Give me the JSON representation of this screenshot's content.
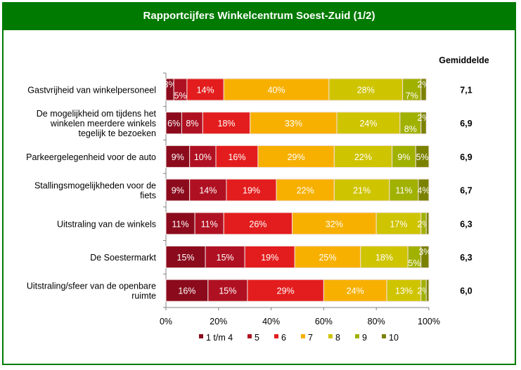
{
  "title": "Rapportcijfers Winkelcentrum Soest-Zuid (1/2)",
  "chart_data": {
    "type": "bar",
    "orientation": "horizontal",
    "stacked": "percent",
    "title": "Rapportcijfers Winkelcentrum Soest-Zuid (1/2)",
    "average_header": "Gemiddelde",
    "categories": [
      [
        "Gastvrijheid van winkelpersoneel"
      ],
      [
        "De mogelijkheid om tijdens het",
        "winkelen meerdere winkels",
        "tegelijk te bezoeken"
      ],
      [
        "Parkeergelegenheid voor de auto"
      ],
      [
        "Stallingsmogelijkheden voor de",
        "fiets"
      ],
      [
        "Uitstraling van de winkels"
      ],
      [
        "De Soestermarkt"
      ],
      [
        "Uitstraling/sfeer van de openbare",
        "ruimte"
      ]
    ],
    "averages": [
      "7,1",
      "6,9",
      "6,9",
      "6,7",
      "6,3",
      "6,3",
      "6,0"
    ],
    "series": [
      {
        "name": "1 t/m 4",
        "color": "#8b0b1c",
        "values": [
          3,
          6,
          9,
          9,
          11,
          15,
          16
        ]
      },
      {
        "name": "5",
        "color": "#b01122",
        "values": [
          5,
          8,
          10,
          14,
          11,
          15,
          15
        ]
      },
      {
        "name": "6",
        "color": "#e31d1d",
        "values": [
          14,
          18,
          16,
          19,
          26,
          19,
          29
        ]
      },
      {
        "name": "7",
        "color": "#f7b000",
        "values": [
          40,
          33,
          29,
          22,
          32,
          25,
          24
        ]
      },
      {
        "name": "8",
        "color": "#cfc400",
        "values": [
          28,
          24,
          22,
          21,
          17,
          18,
          13
        ]
      },
      {
        "name": "9",
        "color": "#a1b100",
        "values": [
          7,
          8,
          9,
          11,
          2,
          5,
          2
        ]
      },
      {
        "name": "10",
        "color": "#7b8200",
        "values": [
          2,
          2,
          5,
          4,
          1,
          3,
          1
        ]
      }
    ],
    "data_labels": [
      [
        "3%",
        "6%",
        "9%",
        "9%",
        "11%",
        "15%",
        "16%"
      ],
      [
        "5%",
        "8%",
        "10%",
        "14%",
        "11%",
        "15%",
        "15%"
      ],
      [
        "14%",
        "18%",
        "16%",
        "19%",
        "26%",
        "19%",
        "29%"
      ],
      [
        "40%",
        "33%",
        "29%",
        "22%",
        "32%",
        "25%",
        "24%"
      ],
      [
        "28%",
        "24%",
        "22%",
        "21%",
        "17%",
        "18%",
        "13%"
      ],
      [
        "7%",
        "8%",
        "9%",
        "11%",
        "2%",
        "5%",
        "2%"
      ],
      [
        "2%",
        "2%",
        "5%",
        "4%",
        "",
        "3%",
        ""
      ]
    ],
    "x_ticks": [
      "0%",
      "20%",
      "40%",
      "60%",
      "80%",
      "100%"
    ],
    "xlim": [
      0,
      100
    ],
    "legend_position": "bottom",
    "grid": false
  }
}
